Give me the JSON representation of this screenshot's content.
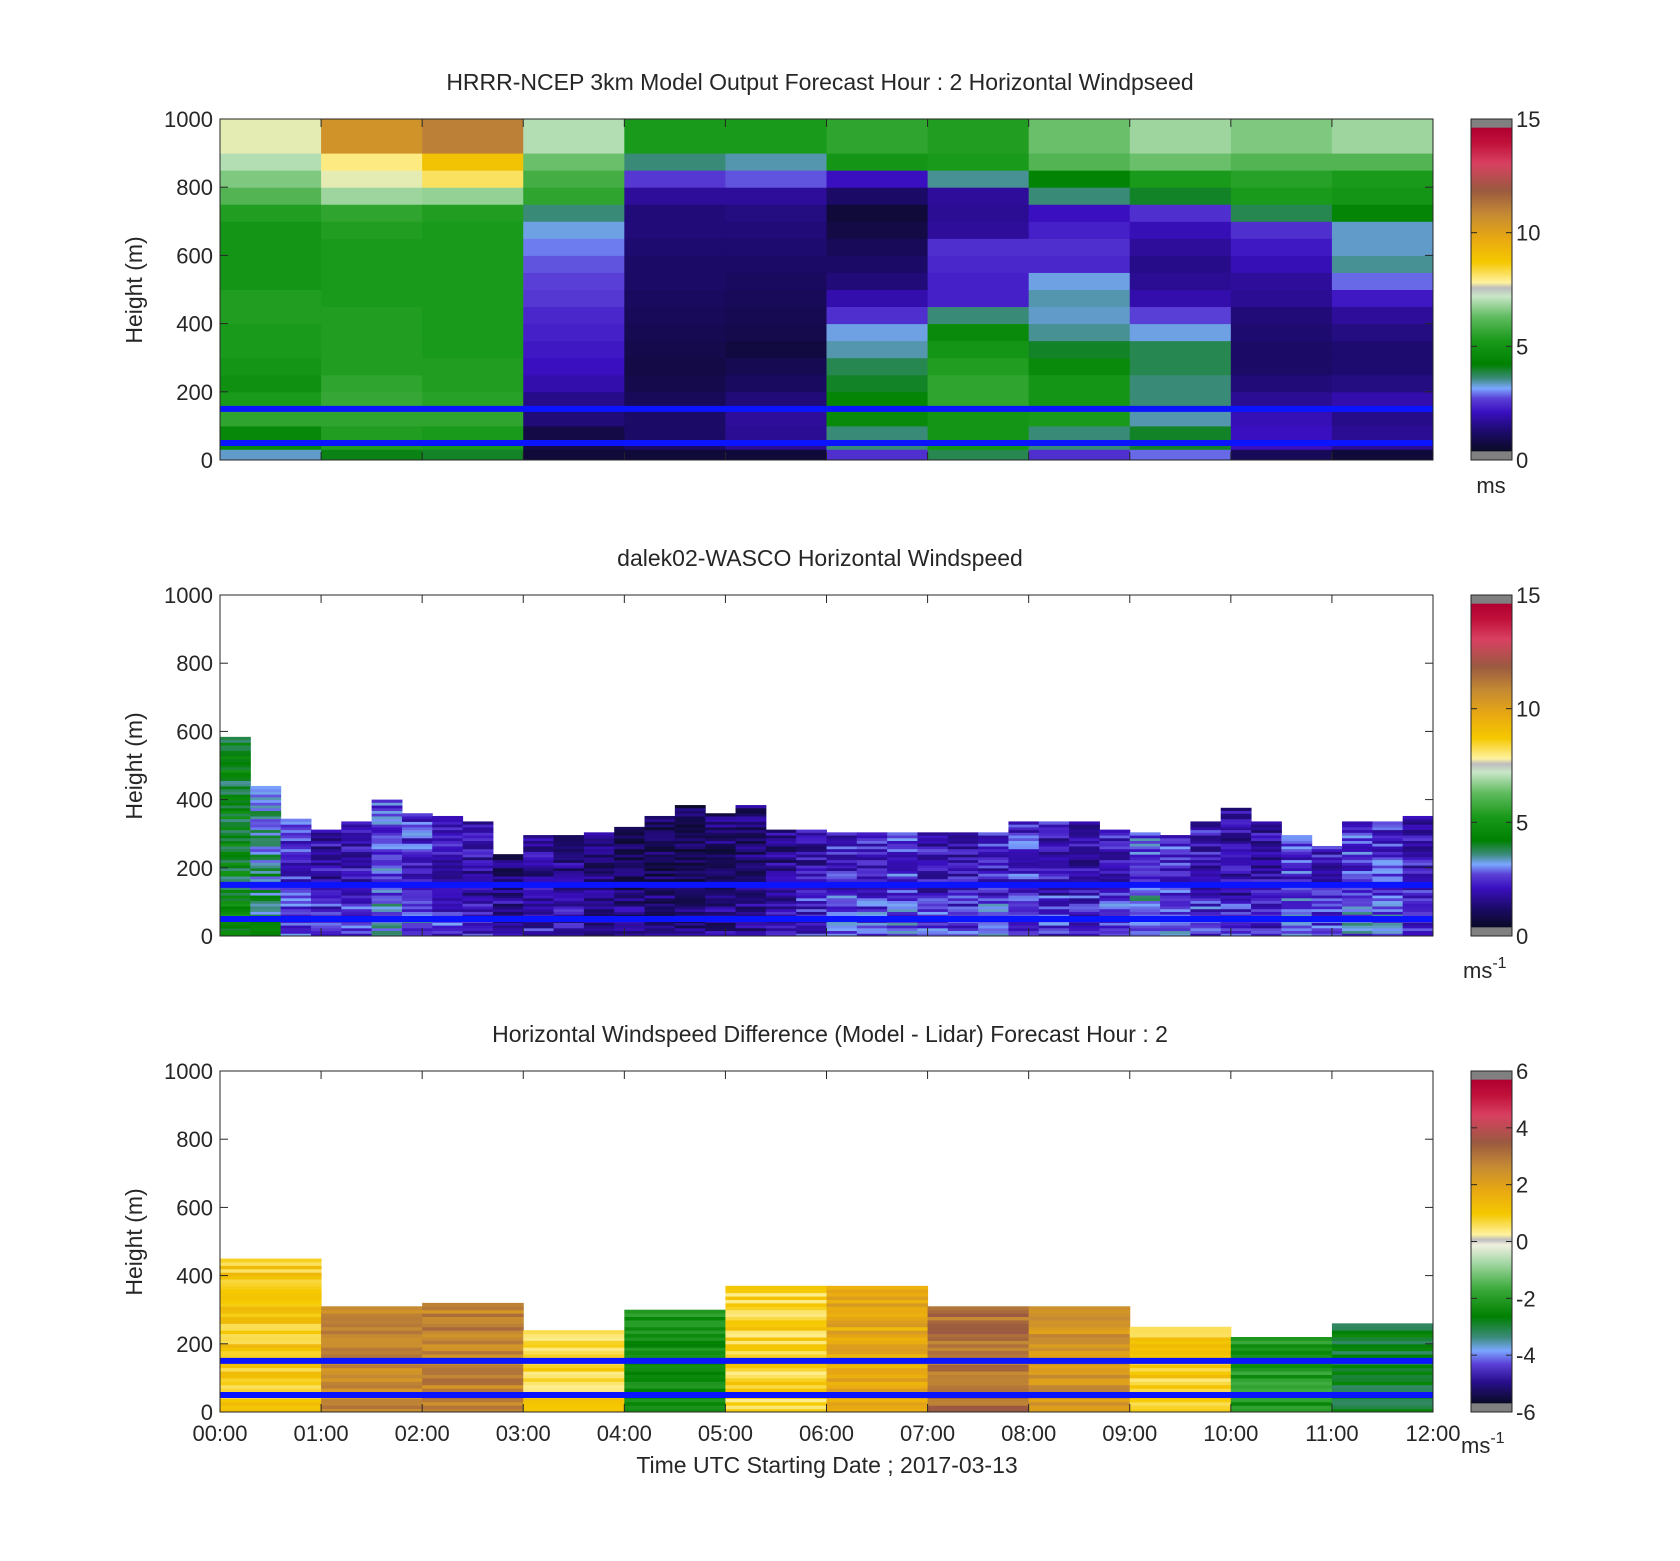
{
  "chart_data": [
    {
      "type": "heatmap",
      "id": "model",
      "title": "HRRR-NCEP 3km Model Output   Forecast Hour : 2 Horizontal Windpseed",
      "ylabel": "Height (m)",
      "ylim": [
        0,
        1000
      ],
      "yticks": [
        "0",
        "200",
        "400",
        "600",
        "800",
        "1000"
      ],
      "xlim": [
        0,
        12
      ],
      "colorbar": {
        "ticks": [
          "0",
          "5",
          "10",
          "15"
        ],
        "range": [
          0,
          15
        ],
        "unit": "ms"
      },
      "reference_lines_m": [
        50,
        150
      ],
      "time_columns": [
        "00:00",
        "01:00",
        "02:00",
        "03:00",
        "04:00",
        "05:00",
        "06:00",
        "07:00",
        "08:00",
        "09:00",
        "10:00",
        "11:00"
      ],
      "height_levels_m": [
        30,
        100,
        150,
        200,
        250,
        300,
        350,
        400,
        450,
        500,
        550,
        600,
        650,
        700,
        750,
        800,
        850,
        900,
        1000
      ],
      "values": [
        [
          4.5,
          5.5,
          5.2,
          4.8,
          5.0,
          5.2,
          5.2,
          5.3,
          5.3,
          5.0,
          5.0,
          5.0,
          5.0,
          5.3,
          6.0,
          6.5,
          7.0,
          7.5
        ],
        [
          5.3,
          5.5,
          5.6,
          5.5,
          5.3,
          5.3,
          5.3,
          5.3,
          5.2,
          5.2,
          5.2,
          5.2,
          5.3,
          5.5,
          6.8,
          7.5,
          8.0,
          10.5
        ],
        [
          5.2,
          5.5,
          5.4,
          5.3,
          5.3,
          5.2,
          5.2,
          5.2,
          5.2,
          5.2,
          5.2,
          5.2,
          5.2,
          5.3,
          6.7,
          8.2,
          9.0,
          11.0
        ],
        [
          0.5,
          1.2,
          1.4,
          1.8,
          2.0,
          2.1,
          2.2,
          2.3,
          2.5,
          2.6,
          2.7,
          2.9,
          3.2,
          3.6,
          5.5,
          5.8,
          6.3,
          7.0
        ],
        [
          1.0,
          1.0,
          0.8,
          0.6,
          0.5,
          0.6,
          0.7,
          0.8,
          0.9,
          1.0,
          1.0,
          1.1,
          1.2,
          1.2,
          1.6,
          2.5,
          3.6,
          5.2
        ],
        [
          1.5,
          1.6,
          1.2,
          0.9,
          0.7,
          0.4,
          0.6,
          0.7,
          0.8,
          0.9,
          1.0,
          1.1,
          1.2,
          1.3,
          1.6,
          2.7,
          3.4,
          5.2
        ],
        [
          3.6,
          4.6,
          4.4,
          4.0,
          3.8,
          3.4,
          3.2,
          2.4,
          1.8,
          1.2,
          1.0,
          0.8,
          0.5,
          0.3,
          1.0,
          2.0,
          5.0,
          5.5
        ],
        [
          5.0,
          5.0,
          5.5,
          5.5,
          5.3,
          5.0,
          4.6,
          3.6,
          2.2,
          2.2,
          2.3,
          2.4,
          1.6,
          1.5,
          1.6,
          3.5,
          5.2,
          5.3
        ],
        [
          3.6,
          5.2,
          5.0,
          5.0,
          4.6,
          4.0,
          3.5,
          3.3,
          3.4,
          3.2,
          2.3,
          2.4,
          2.2,
          2.0,
          3.6,
          4.3,
          6.0,
          6.3
        ],
        [
          4.0,
          3.4,
          3.6,
          3.6,
          3.8,
          3.8,
          3.2,
          2.6,
          1.8,
          1.5,
          1.4,
          1.6,
          1.9,
          2.4,
          4.0,
          5.2,
          6.3,
          6.8
        ],
        [
          2.0,
          1.9,
          1.5,
          1.2,
          1.0,
          1.0,
          1.1,
          1.2,
          1.5,
          1.6,
          1.9,
          2.1,
          2.4,
          3.8,
          5.2,
          5.4,
          6.0,
          6.5
        ],
        [
          1.5,
          1.4,
          1.8,
          1.3,
          1.1,
          1.1,
          1.3,
          1.6,
          2.1,
          2.8,
          3.5,
          3.3,
          3.3,
          4.4,
          5.0,
          5.2,
          6.0,
          6.8
        ]
      ]
    },
    {
      "type": "heatmap",
      "id": "lidar",
      "title": "dalek02-WASCO  Horizontal Windspeed",
      "ylabel": "Height (m)",
      "ylim": [
        0,
        1000
      ],
      "yticks": [
        "0",
        "200",
        "400",
        "600",
        "800",
        "1000"
      ],
      "xlim": [
        0,
        12
      ],
      "colorbar": {
        "ticks": [
          "0",
          "5",
          "10",
          "15"
        ],
        "range": [
          0,
          15
        ],
        "unit": "ms",
        "unit_exponent": "-1"
      },
      "reference_lines_m": [
        50,
        150
      ],
      "column_top_heights_m": [
        580,
        440,
        340,
        310,
        330,
        400,
        360,
        350,
        330,
        240,
        290,
        290,
        300,
        320,
        350,
        380,
        360,
        380,
        310,
        310,
        300,
        300,
        300,
        300,
        300,
        300,
        330,
        330,
        330,
        310,
        300,
        290,
        330,
        370,
        330,
        290,
        260,
        330,
        330,
        350
      ],
      "approx_speed_ms_by_column": [
        4.2,
        3.4,
        2.3,
        1.8,
        2.0,
        2.6,
        2.4,
        2.0,
        1.8,
        1.2,
        1.6,
        1.4,
        1.2,
        0.9,
        0.8,
        0.7,
        1.0,
        1.1,
        1.4,
        1.8,
        2.2,
        2.1,
        2.4,
        2.0,
        2.0,
        2.2,
        2.3,
        2.0,
        1.8,
        2.0,
        2.6,
        2.4,
        2.0,
        1.8,
        1.8,
        2.4,
        2.0,
        2.5,
        2.4,
        2.0
      ]
    },
    {
      "type": "heatmap",
      "id": "difference",
      "title": "Horizontal Windspeed Difference (Model - Lidar) Forecast Hour : 2",
      "ylabel": "Height (m)",
      "xlabel": "Time UTC  Starting Date ; 2017-03-13",
      "ylim": [
        0,
        1000
      ],
      "yticks": [
        "0",
        "200",
        "400",
        "600",
        "800",
        "1000"
      ],
      "xlim": [
        0,
        12
      ],
      "xticks": [
        "00:00",
        "01:00",
        "02:00",
        "03:00",
        "04:00",
        "05:00",
        "06:00",
        "07:00",
        "08:00",
        "09:00",
        "10:00",
        "11:00",
        "12:00"
      ],
      "colorbar": {
        "ticks": [
          "-6",
          "-4",
          "-2",
          "0",
          "2",
          "4",
          "6"
        ],
        "range": [
          -6,
          6
        ],
        "unit": "ms",
        "unit_exponent": "-1"
      },
      "reference_lines_m": [
        50,
        150
      ],
      "time_columns": [
        "00:00",
        "01:00",
        "02:00",
        "03:00",
        "04:00",
        "05:00",
        "06:00",
        "07:00",
        "08:00",
        "09:00",
        "10:00",
        "11:00"
      ],
      "column_top_heights_m": [
        450,
        310,
        320,
        240,
        300,
        370,
        370,
        310,
        310,
        250,
        220,
        260
      ],
      "mean_difference_ms": [
        1.0,
        2.6,
        2.7,
        0.8,
        -2.2,
        0.8,
        1.8,
        3.0,
        2.3,
        0.9,
        -2.0,
        -2.8
      ]
    }
  ]
}
